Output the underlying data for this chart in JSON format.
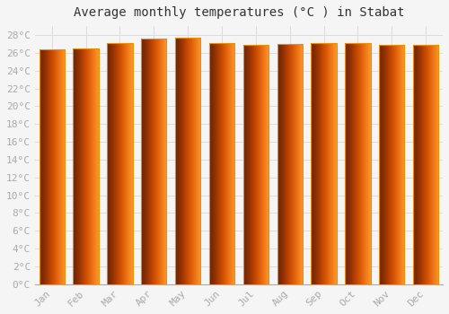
{
  "title": "Average monthly temperatures (°C ) in Stabat",
  "months": [
    "Jan",
    "Feb",
    "Mar",
    "Apr",
    "May",
    "Jun",
    "Jul",
    "Aug",
    "Sep",
    "Oct",
    "Nov",
    "Dec"
  ],
  "temperatures": [
    26.4,
    26.5,
    27.1,
    27.6,
    27.7,
    27.1,
    26.9,
    27.0,
    27.1,
    27.1,
    26.9,
    26.9
  ],
  "bar_color": "#FFC020",
  "bar_edge_color": "#E89000",
  "ylim": [
    0,
    29
  ],
  "yticks": [
    0,
    2,
    4,
    6,
    8,
    10,
    12,
    14,
    16,
    18,
    20,
    22,
    24,
    26,
    28
  ],
  "ytick_labels": [
    "0°C",
    "2°C",
    "4°C",
    "6°C",
    "8°C",
    "10°C",
    "12°C",
    "14°C",
    "16°C",
    "18°C",
    "20°C",
    "22°C",
    "24°C",
    "26°C",
    "28°C"
  ],
  "bg_color": "#F5F5F5",
  "grid_color": "#DCDCDC",
  "title_fontsize": 10,
  "tick_fontsize": 8,
  "tick_color": "#AAAAAA",
  "font_family": "monospace",
  "bar_width": 0.75
}
